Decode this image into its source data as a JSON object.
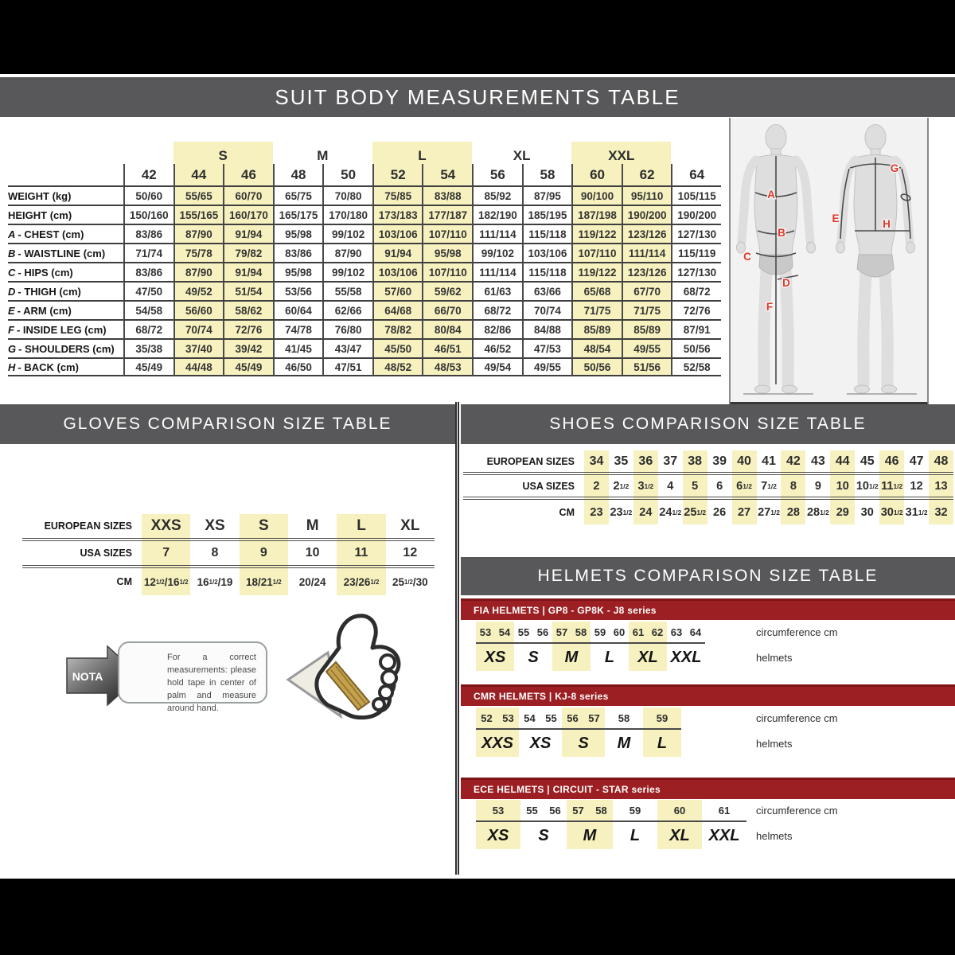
{
  "suit": {
    "title": "SUIT BODY MEASUREMENTS TABLE",
    "sizes": [
      "42",
      "44",
      "46",
      "48",
      "50",
      "52",
      "54",
      "56",
      "58",
      "60",
      "62",
      "64"
    ],
    "size_groups": [
      {
        "label": "S",
        "start": 1,
        "span": 2,
        "highlight": true
      },
      {
        "label": "M",
        "start": 3,
        "span": 2,
        "highlight": false
      },
      {
        "label": "L",
        "start": 5,
        "span": 2,
        "highlight": true
      },
      {
        "label": "XL",
        "start": 7,
        "span": 2,
        "highlight": false
      },
      {
        "label": "XXL",
        "start": 9,
        "span": 2,
        "highlight": true
      }
    ],
    "highlight_columns": [
      1,
      2,
      5,
      6,
      9,
      10
    ],
    "rows": [
      {
        "letter": "",
        "label": "WEIGHT (kg)",
        "values": [
          "50/60",
          "55/65",
          "60/70",
          "65/75",
          "70/80",
          "75/85",
          "83/88",
          "85/92",
          "87/95",
          "90/100",
          "95/110",
          "105/115"
        ]
      },
      {
        "letter": "",
        "label": "HEIGHT (cm)",
        "values": [
          "150/160",
          "155/165",
          "160/170",
          "165/175",
          "170/180",
          "173/183",
          "177/187",
          "182/190",
          "185/195",
          "187/198",
          "190/200",
          "190/200"
        ]
      },
      {
        "letter": "A",
        "label": "CHEST (cm)",
        "values": [
          "83/86",
          "87/90",
          "91/94",
          "95/98",
          "99/102",
          "103/106",
          "107/110",
          "111/114",
          "115/118",
          "119/122",
          "123/126",
          "127/130"
        ]
      },
      {
        "letter": "B",
        "label": "WAISTLINE (cm)",
        "values": [
          "71/74",
          "75/78",
          "79/82",
          "83/86",
          "87/90",
          "91/94",
          "95/98",
          "99/102",
          "103/106",
          "107/110",
          "111/114",
          "115/119"
        ]
      },
      {
        "letter": "C",
        "label": "HIPS (cm)",
        "values": [
          "83/86",
          "87/90",
          "91/94",
          "95/98",
          "99/102",
          "103/106",
          "107/110",
          "111/114",
          "115/118",
          "119/122",
          "123/126",
          "127/130"
        ]
      },
      {
        "letter": "D",
        "label": "THIGH (cm)",
        "values": [
          "47/50",
          "49/52",
          "51/54",
          "53/56",
          "55/58",
          "57/60",
          "59/62",
          "61/63",
          "63/66",
          "65/68",
          "67/70",
          "68/72"
        ]
      },
      {
        "letter": "E",
        "label": "ARM (cm)",
        "values": [
          "54/58",
          "56/60",
          "58/62",
          "60/64",
          "62/66",
          "64/68",
          "66/70",
          "68/72",
          "70/74",
          "71/75",
          "71/75",
          "72/76"
        ]
      },
      {
        "letter": "F",
        "label": "INSIDE LEG (cm)",
        "values": [
          "68/72",
          "70/74",
          "72/76",
          "74/78",
          "76/80",
          "78/82",
          "80/84",
          "82/86",
          "84/88",
          "85/89",
          "85/89",
          "87/91"
        ]
      },
      {
        "letter": "G",
        "label": "SHOULDERS (cm)",
        "values": [
          "35/38",
          "37/40",
          "39/42",
          "41/45",
          "43/47",
          "45/50",
          "46/51",
          "46/52",
          "47/53",
          "48/54",
          "49/55",
          "50/56"
        ]
      },
      {
        "letter": "H",
        "label": "BACK (cm)",
        "values": [
          "45/49",
          "44/48",
          "45/49",
          "46/50",
          "47/51",
          "48/52",
          "48/53",
          "49/54",
          "49/55",
          "50/56",
          "51/56",
          "52/58"
        ]
      }
    ],
    "figure_labels": [
      "A",
      "B",
      "C",
      "D",
      "E",
      "F",
      "G",
      "H"
    ]
  },
  "gloves": {
    "title": "GLOVES COMPARISON SIZE TABLE",
    "row_labels": [
      "EUROPEAN SIZES",
      "USA SIZES",
      "CM"
    ],
    "european": [
      "XXS",
      "XS",
      "S",
      "M",
      "L",
      "XL"
    ],
    "usa": [
      "7",
      "8",
      "9",
      "10",
      "11",
      "12"
    ],
    "cm": [
      "12½/16½",
      "16½/19",
      "18/21½",
      "20/24",
      "23/26½",
      "25½/30"
    ],
    "highlight_columns": [
      0,
      2,
      4
    ]
  },
  "shoes": {
    "title": "SHOES COMPARISON SIZE TABLE",
    "row_labels": [
      "EUROPEAN SIZES",
      "USA SIZES",
      "CM"
    ],
    "european": [
      "34",
      "35",
      "36",
      "37",
      "38",
      "39",
      "40",
      "41",
      "42",
      "43",
      "44",
      "45",
      "46",
      "47",
      "48"
    ],
    "usa": [
      "2",
      "2½",
      "3½",
      "4",
      "5",
      "6",
      "6½",
      "7½",
      "8",
      "9",
      "10",
      "10½",
      "11½",
      "12",
      "13"
    ],
    "cm": [
      "23",
      "23½",
      "24",
      "24½",
      "25½",
      "26",
      "27",
      "27½",
      "28",
      "28½",
      "29",
      "30",
      "30½",
      "31½",
      "32"
    ],
    "highlight_columns": [
      0,
      2,
      4,
      6,
      8,
      10,
      12,
      14
    ]
  },
  "helmets": {
    "title": "HELMETS COMPARISON SIZE TABLE",
    "caption_top": "circumference cm",
    "caption_bottom": "helmets",
    "sections": [
      {
        "series": "FIA HELMETS | GP8 - GP8K - J8 series",
        "groups": [
          {
            "nums": [
              "53",
              "54"
            ],
            "size": "XS",
            "highlight": true
          },
          {
            "nums": [
              "55",
              "56"
            ],
            "size": "S",
            "highlight": false
          },
          {
            "nums": [
              "57",
              "58"
            ],
            "size": "M",
            "highlight": true
          },
          {
            "nums": [
              "59",
              "60"
            ],
            "size": "L",
            "highlight": false
          },
          {
            "nums": [
              "61",
              "62"
            ],
            "size": "XL",
            "highlight": true
          },
          {
            "nums": [
              "63",
              "64"
            ],
            "size": "XXL",
            "highlight": false
          }
        ]
      },
      {
        "series": "CMR HELMETS | KJ-8 series",
        "groups": [
          {
            "nums": [
              "52",
              "53"
            ],
            "size": "XXS",
            "highlight": true
          },
          {
            "nums": [
              "54",
              "55"
            ],
            "size": "XS",
            "highlight": false
          },
          {
            "nums": [
              "56",
              "57"
            ],
            "size": "S",
            "highlight": true
          },
          {
            "nums": [
              "58"
            ],
            "size": "M",
            "highlight": false
          },
          {
            "nums": [
              "59"
            ],
            "size": "L",
            "highlight": true
          }
        ]
      },
      {
        "series": "ECE HELMETS | CIRCUIT - STAR series",
        "groups": [
          {
            "nums": [
              "53"
            ],
            "size": "XS",
            "highlight": true
          },
          {
            "nums": [
              "55",
              "56"
            ],
            "size": "S",
            "highlight": false
          },
          {
            "nums": [
              "57",
              "58"
            ],
            "size": "M",
            "highlight": true
          },
          {
            "nums": [
              "59"
            ],
            "size": "L",
            "highlight": false
          },
          {
            "nums": [
              "60"
            ],
            "size": "XL",
            "highlight": true
          },
          {
            "nums": [
              "61"
            ],
            "size": "XXL",
            "highlight": false
          }
        ]
      }
    ]
  },
  "nota": {
    "label": "NOTA",
    "text": "For a correct measurements: please hold tape in center of palm and measure around hand."
  },
  "colors": {
    "highlight": "#F6F1BE",
    "header_bar": "#58585A",
    "helmet_bar": "#9C2023",
    "figure_label": "#E03A2B"
  }
}
